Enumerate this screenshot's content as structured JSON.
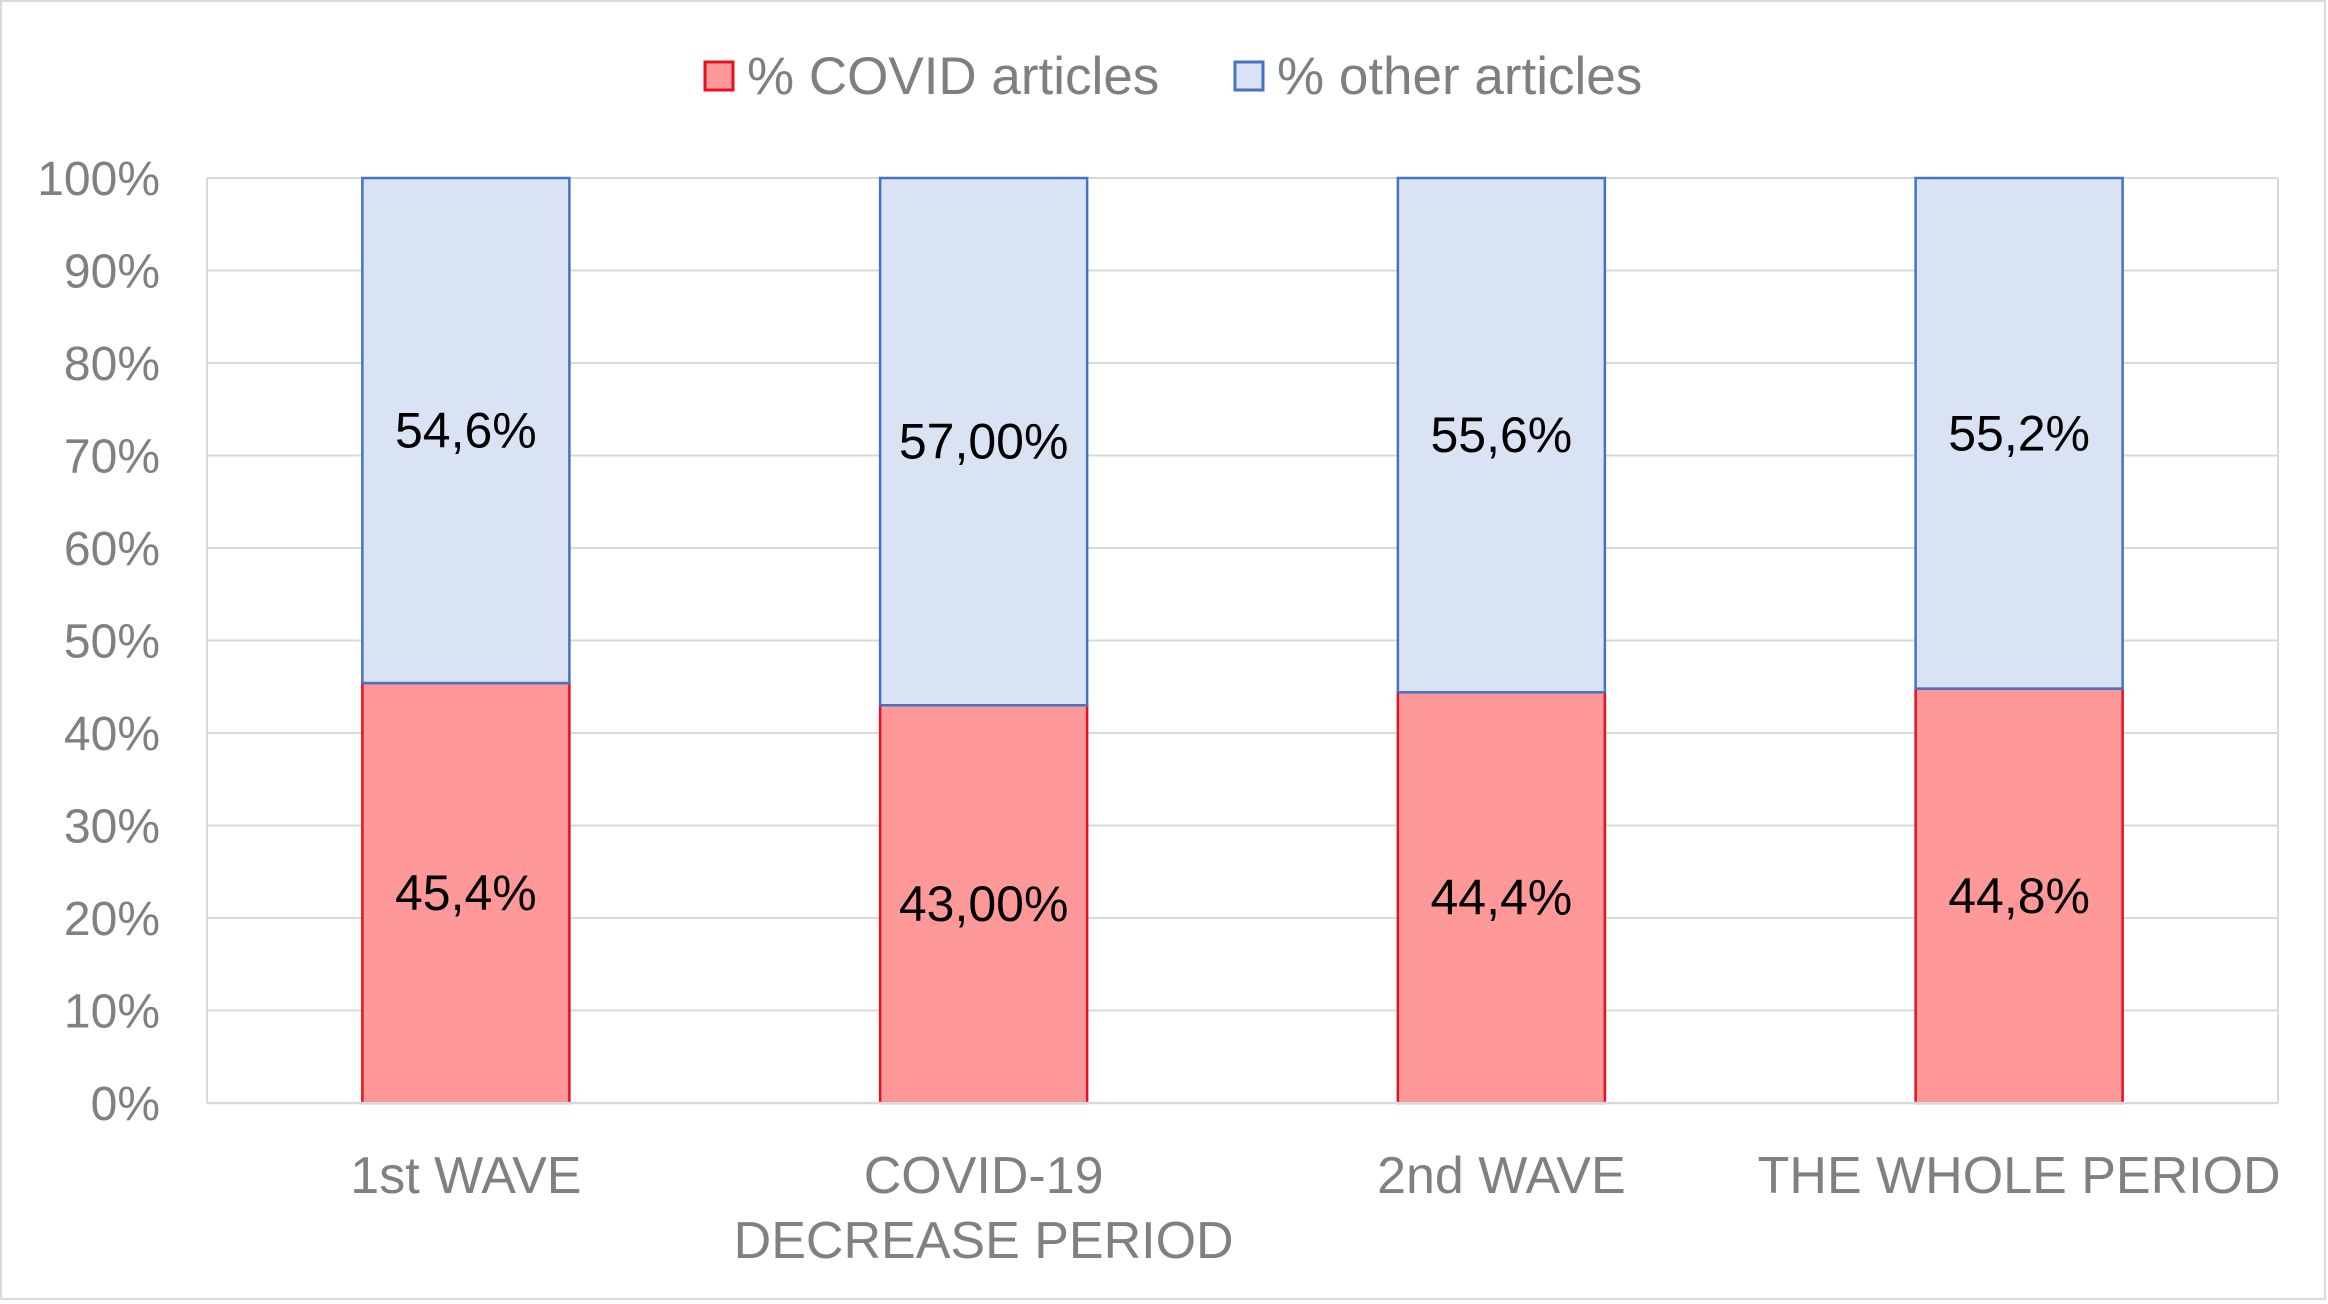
{
  "chart_data": {
    "type": "bar",
    "stacked": true,
    "categories": [
      [
        "1st WAVE"
      ],
      [
        "COVID-19",
        "DECREASE PERIOD"
      ],
      [
        "2nd WAVE"
      ],
      [
        "THE WHOLE PERIOD"
      ]
    ],
    "series": [
      {
        "name": "% COVID articles",
        "values": [
          45.4,
          43.0,
          44.4,
          44.8
        ],
        "labels": [
          "45,4%",
          "43,00%",
          "44,4%",
          "44,8%"
        ],
        "fill": "#ff9999",
        "stroke": "#e8101e"
      },
      {
        "name": "% other articles",
        "values": [
          54.6,
          57.0,
          55.6,
          55.2
        ],
        "labels": [
          "54,6%",
          "57,00%",
          "55,6%",
          "55,2%"
        ],
        "fill": "#dae3f3",
        "stroke": "#4472c4"
      }
    ],
    "ylim": [
      0,
      100
    ],
    "yticks": [
      "0%",
      "10%",
      "20%",
      "30%",
      "40%",
      "50%",
      "60%",
      "70%",
      "80%",
      "90%",
      "100%"
    ],
    "grid": true,
    "gridColor": "#d9d9d9",
    "legend": "top-center",
    "title": "",
    "xlabel": "",
    "ylabel": ""
  }
}
